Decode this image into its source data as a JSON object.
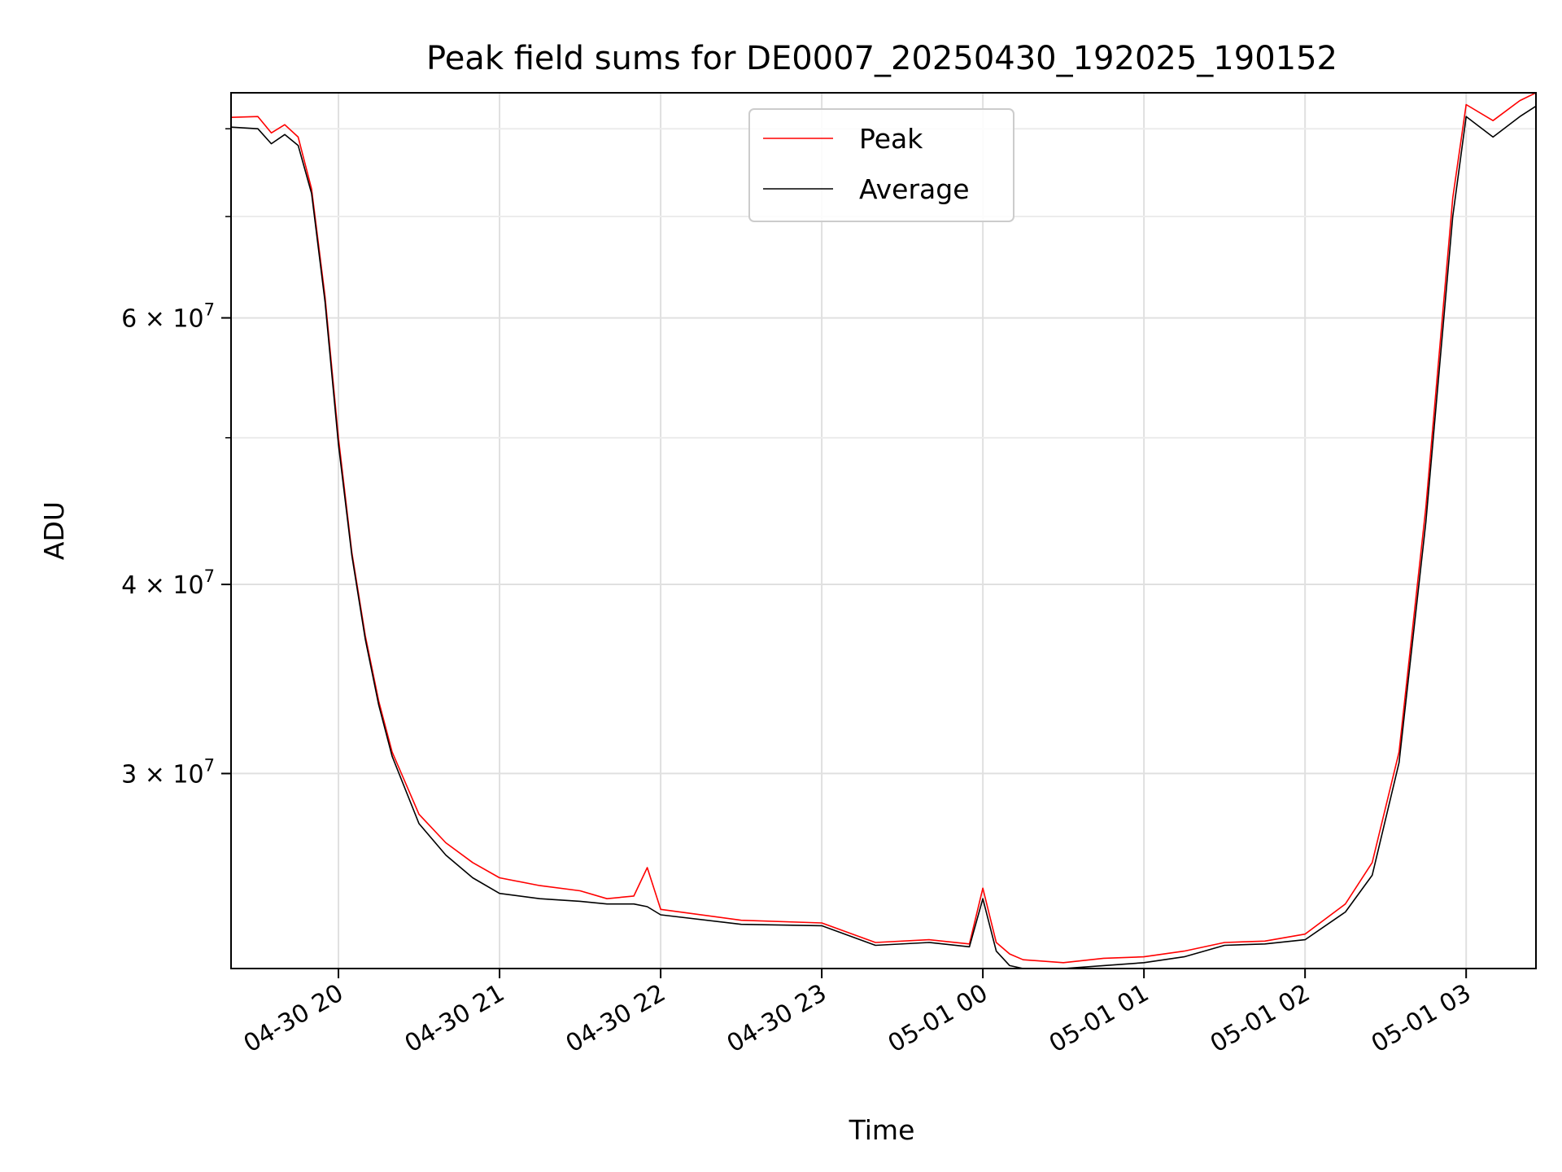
{
  "chart_data": {
    "type": "line",
    "title": "Peak field sums for DE0007_20250430_192025_190152",
    "xlabel": "Time",
    "ylabel": "ADU",
    "y_scale": "log",
    "grid": true,
    "legend_position": "top-center",
    "xlim": [
      "2025-04-30 19:20",
      "2025-05-01 03:26"
    ],
    "ylim": [
      22300000,
      84500000
    ],
    "x_ticks": [
      "04-30 20",
      "04-30 21",
      "04-30 22",
      "04-30 23",
      "05-01 00",
      "05-01 01",
      "05-01 02",
      "05-01 03"
    ],
    "y_ticks": [
      {
        "value": 30000000,
        "mantissa": "3",
        "base": "10",
        "exponent": "7"
      },
      {
        "value": 40000000,
        "mantissa": "4",
        "base": "10",
        "exponent": "7"
      },
      {
        "value": 60000000,
        "mantissa": "6",
        "base": "10",
        "exponent": "7"
      }
    ],
    "y_minor_ticks": [
      50000000,
      70000000,
      80000000
    ],
    "series": [
      {
        "name": "Peak",
        "color": "#ff0000",
        "x": [
          "2025-04-30 19:20",
          "2025-04-30 19:30",
          "2025-04-30 19:35",
          "2025-04-30 19:40",
          "2025-04-30 19:45",
          "2025-04-30 19:50",
          "2025-04-30 19:55",
          "2025-04-30 20:00",
          "2025-04-30 20:05",
          "2025-04-30 20:10",
          "2025-04-30 20:15",
          "2025-04-30 20:20",
          "2025-04-30 20:30",
          "2025-04-30 20:40",
          "2025-04-30 20:50",
          "2025-04-30 21:00",
          "2025-04-30 21:15",
          "2025-04-30 21:30",
          "2025-04-30 21:40",
          "2025-04-30 21:50",
          "2025-04-30 21:55",
          "2025-04-30 22:00",
          "2025-04-30 22:30",
          "2025-04-30 23:00",
          "2025-04-30 23:20",
          "2025-04-30 23:40",
          "2025-04-30 23:55",
          "2025-05-01 00:00",
          "2025-05-01 00:05",
          "2025-05-01 00:10",
          "2025-05-01 00:15",
          "2025-05-01 00:30",
          "2025-05-01 00:45",
          "2025-05-01 01:00",
          "2025-05-01 01:15",
          "2025-05-01 01:30",
          "2025-05-01 01:45",
          "2025-05-01 02:00",
          "2025-05-01 02:15",
          "2025-05-01 02:25",
          "2025-05-01 02:35",
          "2025-05-01 02:45",
          "2025-05-01 02:55",
          "2025-05-01 03:00",
          "2025-05-01 03:10",
          "2025-05-01 03:20",
          "2025-05-01 03:26"
        ],
        "y": [
          81400000,
          81500000,
          79500000,
          80500000,
          79000000,
          73000000,
          62000000,
          50000000,
          42000000,
          37000000,
          33500000,
          31000000,
          28200000,
          27000000,
          26200000,
          25600000,
          25300000,
          25100000,
          24800000,
          24900000,
          26000000,
          24400000,
          24000000,
          23900000,
          23200000,
          23300000,
          23150000,
          25200000,
          23200000,
          22800000,
          22600000,
          22500000,
          22650000,
          22700000,
          22900000,
          23200000,
          23250000,
          23500000,
          24600000,
          26200000,
          31000000,
          45000000,
          72000000,
          83000000,
          81000000,
          83500000,
          84500000
        ]
      },
      {
        "name": "Average",
        "color": "#000000",
        "x": [
          "2025-04-30 19:20",
          "2025-04-30 19:30",
          "2025-04-30 19:35",
          "2025-04-30 19:40",
          "2025-04-30 19:45",
          "2025-04-30 19:50",
          "2025-04-30 19:55",
          "2025-04-30 20:00",
          "2025-04-30 20:05",
          "2025-04-30 20:10",
          "2025-04-30 20:15",
          "2025-04-30 20:20",
          "2025-04-30 20:30",
          "2025-04-30 20:40",
          "2025-04-30 20:50",
          "2025-04-30 21:00",
          "2025-04-30 21:15",
          "2025-04-30 21:30",
          "2025-04-30 21:40",
          "2025-04-30 21:50",
          "2025-04-30 21:55",
          "2025-04-30 22:00",
          "2025-04-30 22:30",
          "2025-04-30 23:00",
          "2025-04-30 23:20",
          "2025-04-30 23:40",
          "2025-04-30 23:55",
          "2025-05-01 00:00",
          "2025-05-01 00:05",
          "2025-05-01 00:10",
          "2025-05-01 00:15",
          "2025-05-01 00:30",
          "2025-05-01 00:45",
          "2025-05-01 01:00",
          "2025-05-01 01:15",
          "2025-05-01 01:30",
          "2025-05-01 01:45",
          "2025-05-01 02:00",
          "2025-05-01 02:15",
          "2025-05-01 02:25",
          "2025-05-01 02:35",
          "2025-05-01 02:45",
          "2025-05-01 02:55",
          "2025-05-01 03:00",
          "2025-05-01 03:10",
          "2025-05-01 03:20",
          "2025-05-01 03:26"
        ],
        "y": [
          80200000,
          80000000,
          78200000,
          79300000,
          78000000,
          72500000,
          61500000,
          49500000,
          41800000,
          36800000,
          33300000,
          30800000,
          27800000,
          26500000,
          25600000,
          25000000,
          24800000,
          24700000,
          24600000,
          24600000,
          24500000,
          24200000,
          23850000,
          23800000,
          23100000,
          23200000,
          23050000,
          24800000,
          22900000,
          22400000,
          22300000,
          22300000,
          22400000,
          22500000,
          22700000,
          23100000,
          23150000,
          23300000,
          24300000,
          25700000,
          30500000,
          44000000,
          70000000,
          81500000,
          79000000,
          81500000,
          82800000
        ]
      }
    ]
  }
}
